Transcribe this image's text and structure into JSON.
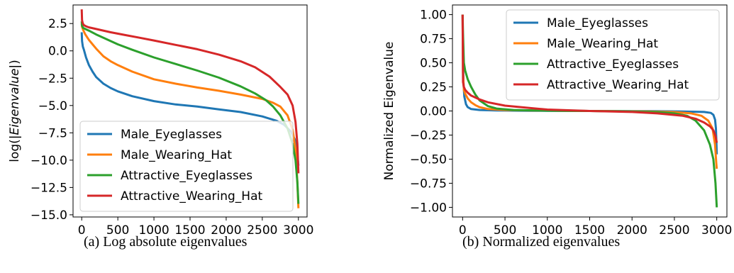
{
  "colors": {
    "Male_Eyeglasses": "#1f77b4",
    "Male_Wearing_Hat": "#ff7f0e",
    "Attractive_Eyeglasses": "#2ca02c",
    "Attractive_Wearing_Hat": "#d62728"
  },
  "chart_data": [
    {
      "type": "line",
      "title": "",
      "caption": "(a) Log absolute eigenvalues",
      "xlabel": "",
      "ylabel_prefix": "log(|",
      "ylabel_italic": "Eigenvalue",
      "ylabel_suffix": "|)",
      "xlim": [
        -120,
        3120
      ],
      "ylim": [
        -15.2,
        4.2
      ],
      "xticks": [
        0,
        500,
        1000,
        1500,
        2000,
        2500,
        3000
      ],
      "xtick_labels": [
        "0",
        "500",
        "1000",
        "1500",
        "2000",
        "2500",
        "3000"
      ],
      "yticks": [
        2.5,
        0.0,
        -2.5,
        -5.0,
        -7.5,
        -10.0,
        -12.5,
        -15.0
      ],
      "ytick_labels": [
        "2.5",
        "0.0",
        "−2.5",
        "−5.0",
        "−7.5",
        "−10.0",
        "−12.5",
        "−15.0"
      ],
      "legend_position": "lower-left",
      "grid": false,
      "series": [
        {
          "name": "Male_Eyeglasses",
          "x": [
            0,
            5,
            15,
            30,
            60,
            100,
            150,
            200,
            300,
            400,
            500,
            700,
            1000,
            1300,
            1600,
            1900,
            2200,
            2500,
            2700,
            2800,
            2900,
            2950,
            2975,
            2990,
            3000
          ],
          "y": [
            1.7,
            0.9,
            0.4,
            0.1,
            -0.6,
            -1.3,
            -1.9,
            -2.4,
            -3.0,
            -3.4,
            -3.7,
            -4.15,
            -4.6,
            -4.9,
            -5.1,
            -5.35,
            -5.6,
            -6.0,
            -6.4,
            -6.75,
            -7.4,
            -8.1,
            -8.9,
            -9.8,
            -10.5
          ]
        },
        {
          "name": "Male_Wearing_Hat",
          "x": [
            0,
            5,
            20,
            50,
            100,
            150,
            200,
            300,
            400,
            500,
            700,
            1000,
            1300,
            1600,
            1900,
            2200,
            2500,
            2650,
            2750,
            2850,
            2920,
            2960,
            2985,
            3000
          ],
          "y": [
            2.5,
            2.2,
            1.9,
            1.5,
            1.0,
            0.6,
            0.2,
            -0.5,
            -0.95,
            -1.3,
            -1.9,
            -2.6,
            -3.0,
            -3.35,
            -3.65,
            -4.0,
            -4.4,
            -4.75,
            -5.1,
            -5.9,
            -7.2,
            -9.0,
            -12.0,
            -14.4
          ]
        },
        {
          "name": "Attractive_Eyeglasses",
          "x": [
            0,
            5,
            20,
            50,
            100,
            200,
            300,
            500,
            700,
            1000,
            1300,
            1600,
            1900,
            2200,
            2400,
            2550,
            2650,
            2750,
            2850,
            2920,
            2960,
            2985,
            3000
          ],
          "y": [
            2.7,
            2.3,
            2.1,
            2.0,
            1.85,
            1.5,
            1.2,
            0.6,
            0.1,
            -0.6,
            -1.2,
            -1.8,
            -2.45,
            -3.25,
            -3.9,
            -4.5,
            -5.1,
            -5.9,
            -7.1,
            -8.5,
            -10.0,
            -12.0,
            -14.0
          ]
        },
        {
          "name": "Attractive_Wearing_Hat",
          "x": [
            0,
            5,
            15,
            30,
            60,
            100,
            200,
            400,
            600,
            800,
            1000,
            1300,
            1600,
            1900,
            2200,
            2400,
            2600,
            2750,
            2850,
            2920,
            2960,
            2985,
            3000
          ],
          "y": [
            3.8,
            2.8,
            2.5,
            2.35,
            2.25,
            2.15,
            2.0,
            1.7,
            1.45,
            1.2,
            0.95,
            0.55,
            0.15,
            -0.35,
            -0.95,
            -1.5,
            -2.35,
            -3.3,
            -4.0,
            -5.0,
            -6.5,
            -8.5,
            -11.2
          ]
        }
      ]
    },
    {
      "type": "line",
      "title": "",
      "caption": "(b) Normalized eigenvalues",
      "xlabel": "",
      "ylabel": "Normalized Eigenvalue",
      "xlim": [
        -120,
        3120
      ],
      "ylim": [
        -1.1,
        1.1
      ],
      "xticks": [
        0,
        500,
        1000,
        1500,
        2000,
        2500,
        3000
      ],
      "xtick_labels": [
        "0",
        "500",
        "1000",
        "1500",
        "2000",
        "2500",
        "3000"
      ],
      "yticks": [
        1.0,
        0.75,
        0.5,
        0.25,
        0.0,
        -0.25,
        -0.5,
        -0.75,
        -1.0
      ],
      "ytick_labels": [
        "1.00",
        "0.75",
        "0.50",
        "0.25",
        "0.00",
        "−0.25",
        "−0.50",
        "−0.75",
        "−1.00"
      ],
      "legend_position": "upper-right",
      "grid": false,
      "series": [
        {
          "name": "Male_Eyeglasses",
          "x": [
            0,
            5,
            10,
            20,
            40,
            60,
            100,
            200,
            400,
            800,
            1500,
            2200,
            2600,
            2850,
            2930,
            2960,
            2980,
            2990,
            2995,
            3000
          ],
          "y": [
            1.0,
            0.55,
            0.3,
            0.15,
            0.07,
            0.04,
            0.02,
            0.01,
            0.005,
            0.002,
            0.0,
            -0.002,
            -0.005,
            -0.01,
            -0.02,
            -0.04,
            -0.09,
            -0.18,
            -0.3,
            -0.45
          ]
        },
        {
          "name": "Male_Wearing_Hat",
          "x": [
            0,
            5,
            15,
            30,
            60,
            100,
            150,
            200,
            300,
            500,
            800,
            1500,
            2200,
            2500,
            2700,
            2820,
            2900,
            2950,
            2980,
            2995,
            3000
          ],
          "y": [
            1.0,
            0.4,
            0.22,
            0.18,
            0.13,
            0.09,
            0.06,
            0.04,
            0.02,
            0.01,
            0.005,
            0.0,
            -0.005,
            -0.012,
            -0.025,
            -0.05,
            -0.1,
            -0.18,
            -0.35,
            -0.55,
            -0.6
          ]
        },
        {
          "name": "Attractive_Eyeglasses",
          "x": [
            0,
            5,
            15,
            30,
            60,
            100,
            150,
            200,
            300,
            400,
            600,
            1000,
            1500,
            2000,
            2300,
            2500,
            2650,
            2750,
            2850,
            2920,
            2960,
            2985,
            3000
          ],
          "y": [
            1.0,
            0.8,
            0.5,
            0.42,
            0.33,
            0.25,
            0.17,
            0.11,
            0.05,
            0.025,
            0.01,
            0.003,
            0.0,
            -0.005,
            -0.012,
            -0.025,
            -0.05,
            -0.1,
            -0.2,
            -0.35,
            -0.5,
            -0.75,
            -1.0
          ]
        },
        {
          "name": "Attractive_Wearing_Hat",
          "x": [
            0,
            5,
            15,
            30,
            60,
            100,
            200,
            300,
            500,
            800,
            1000,
            1500,
            2000,
            2300,
            2600,
            2750,
            2850,
            2920,
            2960,
            2985,
            3000
          ],
          "y": [
            1.0,
            0.3,
            0.25,
            0.22,
            0.19,
            0.16,
            0.12,
            0.09,
            0.055,
            0.03,
            0.015,
            0.0,
            -0.01,
            -0.025,
            -0.05,
            -0.08,
            -0.12,
            -0.16,
            -0.2,
            -0.26,
            -0.33
          ]
        }
      ]
    }
  ]
}
